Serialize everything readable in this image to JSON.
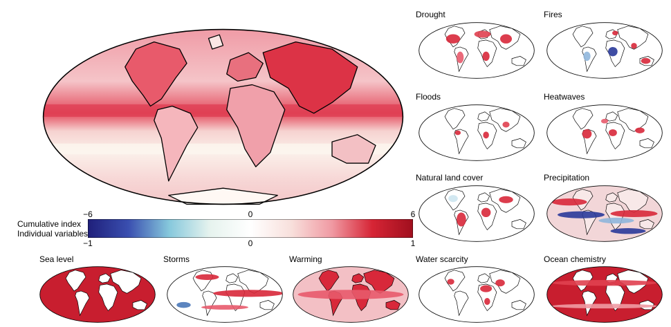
{
  "main_map": {
    "name": "Cumulative index"
  },
  "colorbar": {
    "label_top": "Cumulative index",
    "label_bottom": "Individual variables",
    "top_ticks": [
      "−6",
      "0",
      "6"
    ],
    "bottom_ticks": [
      "−1",
      "0",
      "1"
    ],
    "colors": [
      "#1f1f7a",
      "#3a4fb0",
      "#86c8dc",
      "#e6f3ee",
      "#ffffff",
      "#f8e0dc",
      "#f09aa3",
      "#d62535",
      "#a00f1e"
    ]
  },
  "panels": [
    {
      "id": "drought",
      "title": "Drought"
    },
    {
      "id": "fires",
      "title": "Fires"
    },
    {
      "id": "floods",
      "title": "Floods"
    },
    {
      "id": "heatwaves",
      "title": "Heatwaves"
    },
    {
      "id": "natural-land-cover",
      "title": "Natural land cover"
    },
    {
      "id": "precipitation",
      "title": "Precipitation"
    },
    {
      "id": "sea-level",
      "title": "Sea level"
    },
    {
      "id": "storms",
      "title": "Storms"
    },
    {
      "id": "warming",
      "title": "Warming"
    },
    {
      "id": "water-scarcity",
      "title": "Water scarcity"
    },
    {
      "id": "ocean-chemistry",
      "title": "Ocean chemistry"
    }
  ]
}
